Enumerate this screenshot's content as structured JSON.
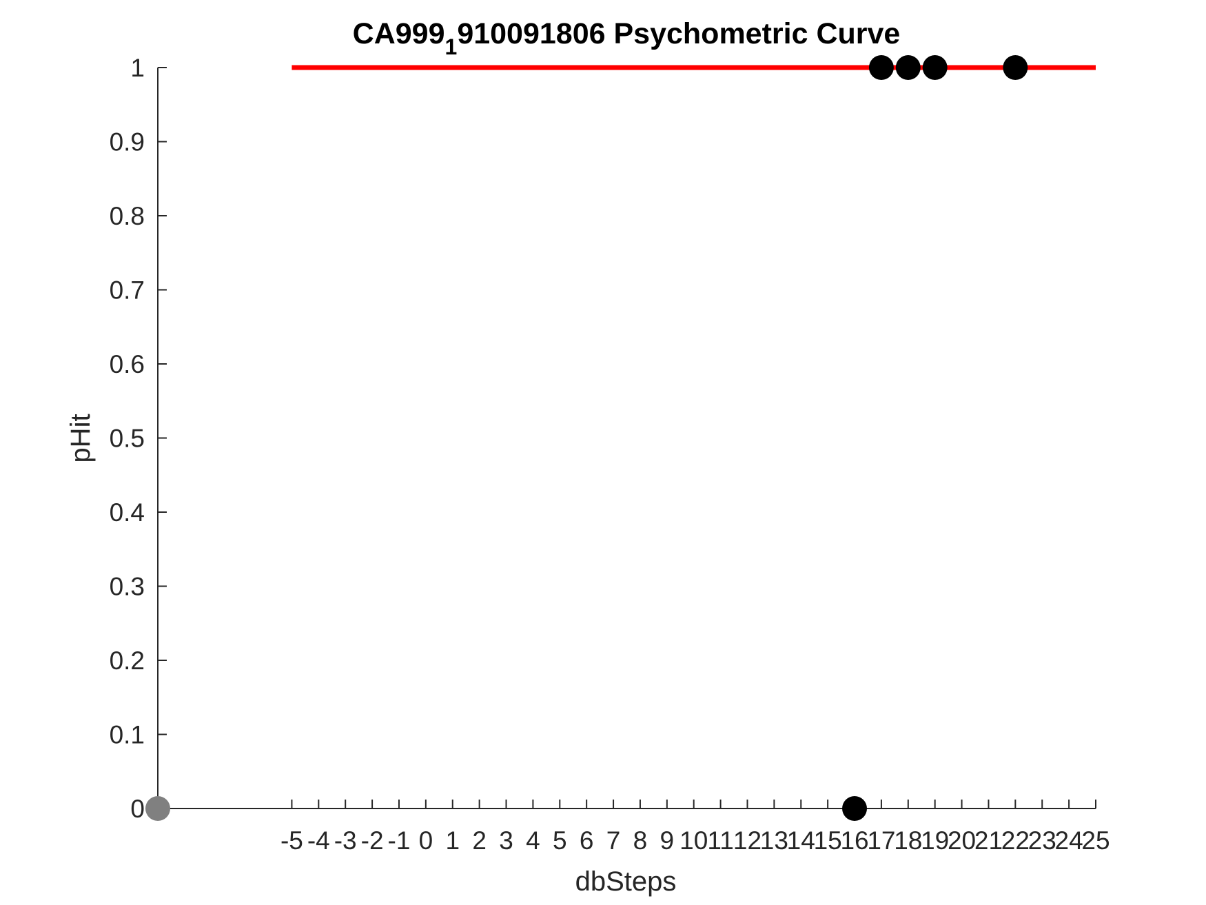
{
  "chart_data": {
    "type": "scatter",
    "title": {
      "main": "CA999",
      "subscript": "1",
      "rest": "910091806 Psychometric Curve"
    },
    "xlabel": "dbSteps",
    "ylabel": "pHit",
    "xlim": [
      -10,
      25
    ],
    "ylim": [
      0,
      1
    ],
    "x_ticks": [
      -5,
      -4,
      -3,
      -2,
      -1,
      0,
      1,
      2,
      3,
      4,
      5,
      6,
      7,
      8,
      9,
      10,
      11,
      12,
      13,
      14,
      15,
      16,
      17,
      18,
      19,
      20,
      21,
      22,
      23,
      24,
      25
    ],
    "y_ticks": [
      0,
      0.1,
      0.2,
      0.3,
      0.4,
      0.5,
      0.6,
      0.7,
      0.8,
      0.9,
      1
    ],
    "fit_line": {
      "x": [
        -5,
        25
      ],
      "y": [
        1,
        1
      ],
      "color": "#ff0000"
    },
    "points": [
      {
        "x": 16,
        "y": 0,
        "color": "#000000"
      },
      {
        "x": 17,
        "y": 1,
        "color": "#000000"
      },
      {
        "x": 18,
        "y": 1,
        "color": "#000000"
      },
      {
        "x": 19,
        "y": 1,
        "color": "#000000"
      },
      {
        "x": 22,
        "y": 1,
        "color": "#000000"
      },
      {
        "x": -10,
        "y": 0,
        "color": "#808080"
      }
    ],
    "axis_color": "#262626",
    "grid": false,
    "legend": "none"
  }
}
